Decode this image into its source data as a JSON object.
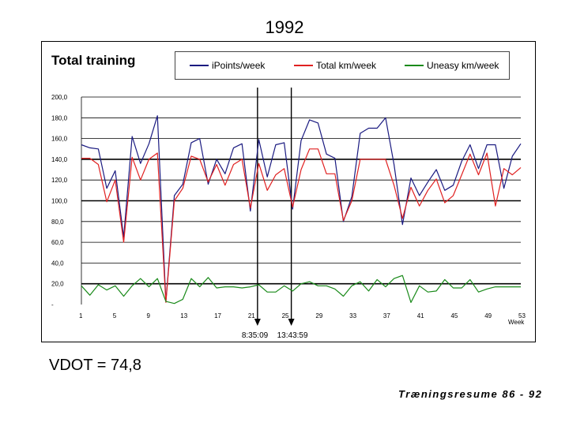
{
  "slide": {
    "title": "1992",
    "vdot": "VDOT = 74,8",
    "footer": "Træningsresume 86 - 92"
  },
  "colors": {
    "ipoints": "#1a1a80",
    "total_km": "#e02020",
    "uneasy_km": "#1a8a1a",
    "grid": "#000000",
    "marker": "#000000"
  },
  "chart_data": {
    "type": "line",
    "title": "Total training",
    "xlabel": "Week",
    "ylabel": "",
    "ylim": [
      0,
      200
    ],
    "x_ticks": [
      "1",
      "5",
      "9",
      "13",
      "17",
      "21",
      "25",
      "29",
      "33",
      "37",
      "41",
      "45",
      "49",
      "53"
    ],
    "x_tick_values": [
      1,
      5,
      9,
      13,
      17,
      21,
      25,
      29,
      33,
      37,
      41,
      45,
      49,
      53
    ],
    "y_ticks": [
      "-",
      "20,0",
      "40,0",
      "60,0",
      "80,0",
      "100,0",
      "120,0",
      "140,0",
      "160,0",
      "180,0",
      "200,0"
    ],
    "y_tick_values": [
      0,
      20,
      40,
      60,
      80,
      100,
      120,
      140,
      160,
      180,
      200
    ],
    "x": [
      1,
      2,
      3,
      4,
      5,
      6,
      7,
      8,
      9,
      10,
      11,
      12,
      13,
      14,
      15,
      16,
      17,
      18,
      19,
      20,
      21,
      22,
      23,
      24,
      25,
      26,
      27,
      28,
      29,
      30,
      31,
      32,
      33,
      34,
      35,
      36,
      37,
      38,
      39,
      40,
      41,
      42,
      43,
      44,
      45,
      46,
      47,
      48,
      49,
      50,
      51,
      52,
      53
    ],
    "series": [
      {
        "name": "iPoints/week",
        "color_key": "ipoints",
        "values": [
          154,
          151,
          150,
          112,
          129,
          65,
          162,
          136,
          155,
          182,
          3,
          105,
          116,
          156,
          160,
          116,
          140,
          126,
          151,
          155,
          90,
          159,
          123,
          154,
          156,
          92,
          158,
          178,
          175,
          145,
          141,
          80,
          104,
          165,
          170,
          170,
          180,
          135,
          77,
          122,
          105,
          118,
          130,
          110,
          115,
          138,
          154,
          131,
          154,
          154,
          112,
          143,
          155
        ]
      },
      {
        "name": "Total km/week",
        "color_key": "total_km",
        "values": [
          141,
          141,
          135,
          99,
          120,
          60,
          142,
          120,
          140,
          146,
          2,
          100,
          112,
          143,
          140,
          118,
          135,
          115,
          135,
          140,
          93,
          136,
          110,
          125,
          131,
          94,
          130,
          150,
          150,
          126,
          126,
          81,
          100,
          140,
          140,
          140,
          140,
          115,
          83,
          113,
          95,
          110,
          121,
          98,
          105,
          125,
          145,
          125,
          146,
          95,
          131,
          125,
          132
        ]
      },
      {
        "name": "Uneasy km/week",
        "color_key": "uneasy_km",
        "values": [
          18,
          9,
          19,
          14,
          18,
          8,
          18,
          25,
          17,
          25,
          3,
          1,
          5,
          25,
          17,
          26,
          16,
          17,
          17,
          16,
          17,
          19,
          12,
          12,
          18,
          13,
          20,
          22,
          18,
          18,
          15,
          8,
          18,
          22,
          13,
          24,
          17,
          25,
          28,
          2,
          18,
          12,
          13,
          24,
          16,
          16,
          24,
          12,
          15,
          17,
          17,
          17,
          17
        ]
      }
    ],
    "markers": [
      {
        "week": 21,
        "label": "8:35:09"
      },
      {
        "week": 25,
        "label": "13:43:59"
      }
    ],
    "emphasized_gridlines": [
      20,
      100,
      140
    ]
  }
}
